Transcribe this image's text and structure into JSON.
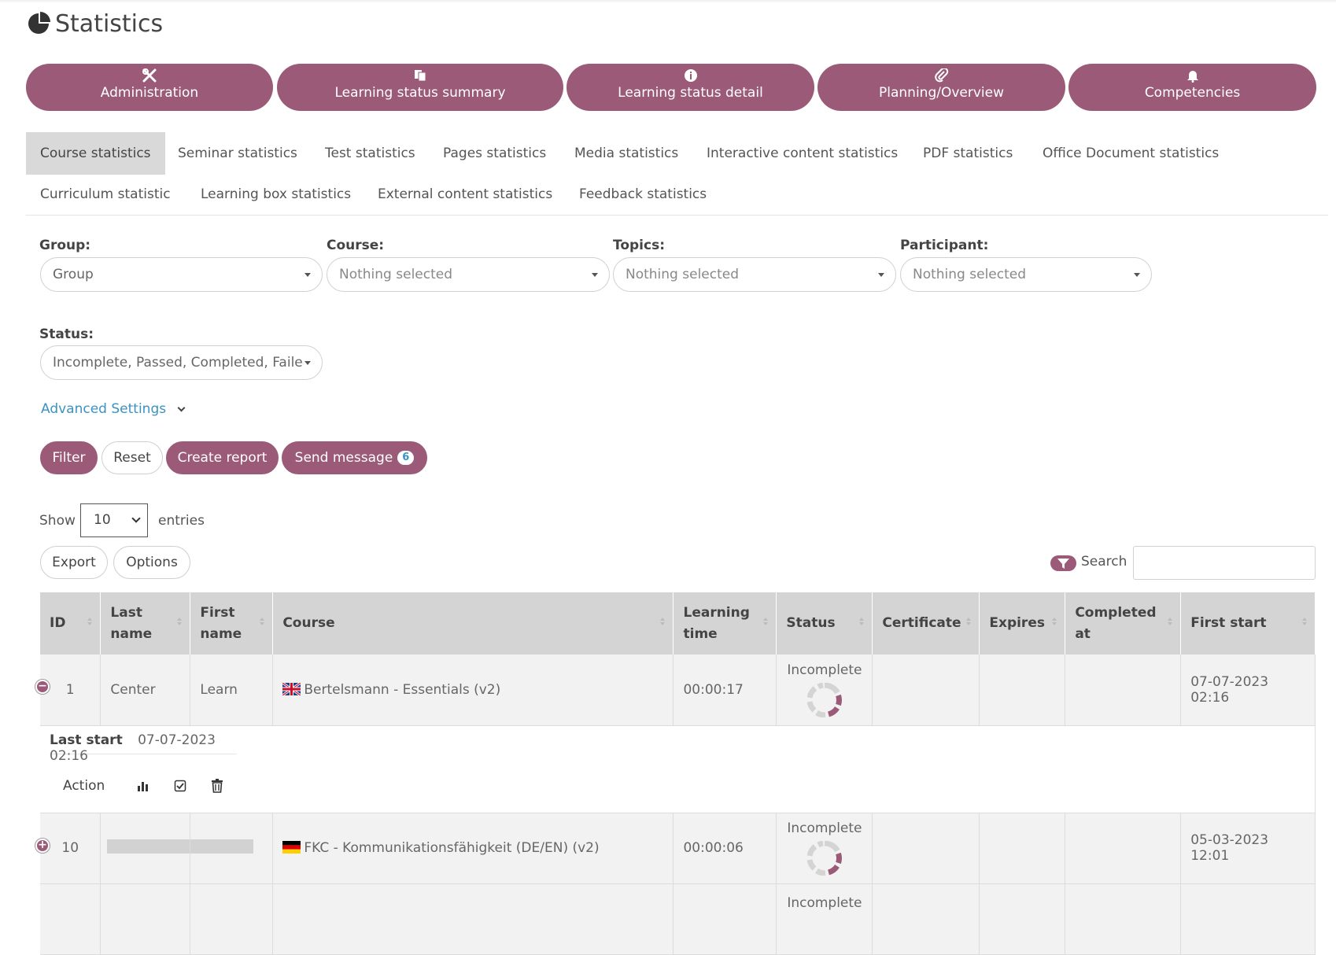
{
  "page": {
    "title": "Statistics"
  },
  "main_nav": [
    {
      "label": "Administration",
      "icon": "tools-icon"
    },
    {
      "label": "Learning status summary",
      "icon": "copy-icon"
    },
    {
      "label": "Learning status detail",
      "icon": "info-icon"
    },
    {
      "label": "Planning/Overview",
      "icon": "paperclip-icon"
    },
    {
      "label": "Competencies",
      "icon": "bell-icon"
    }
  ],
  "tabs": {
    "row1": [
      "Course statistics",
      "Seminar statistics",
      "Test statistics",
      "Pages statistics",
      "Media statistics",
      "Interactive content statistics",
      "PDF statistics",
      "Office Document statistics"
    ],
    "row2": [
      "Curriculum statistic",
      "Learning box statistics",
      "External content statistics",
      "Feedback statistics"
    ],
    "active": "Course statistics"
  },
  "filters": {
    "group": {
      "label": "Group:",
      "value": "Group"
    },
    "course": {
      "label": "Course:",
      "value": "Nothing selected"
    },
    "topics": {
      "label": "Topics:",
      "value": "Nothing selected"
    },
    "participant": {
      "label": "Participant:",
      "value": "Nothing selected"
    },
    "status": {
      "label": "Status:",
      "value": "Incomplete, Passed, Completed, Faile"
    },
    "advanced_label": "Advanced Settings"
  },
  "actions": {
    "filter": "Filter",
    "reset": "Reset",
    "create_report": "Create report",
    "send_message": "Send message",
    "send_message_count": "6"
  },
  "table_controls": {
    "show": "Show",
    "entries_value": "10",
    "entries": "entries",
    "export": "Export",
    "options": "Options",
    "search": "Search"
  },
  "table": {
    "columns": [
      {
        "label": "ID"
      },
      {
        "label": "Last name"
      },
      {
        "label": "First name"
      },
      {
        "label": "Course"
      },
      {
        "label": "Learning time"
      },
      {
        "label": "Status"
      },
      {
        "label": "Certificate"
      },
      {
        "label": "Expires"
      },
      {
        "label": "Completed at"
      },
      {
        "label": "First start"
      }
    ],
    "rows": [
      {
        "id": "1",
        "last_name": "Center",
        "first_name": "Learn",
        "course": "Bertelsmann - Essentials (v2)",
        "flag": "uk-flag-icon",
        "learning_time": "00:00:17",
        "status": "Incomplete",
        "certificate": "",
        "expires": "",
        "completed_at": "",
        "first_start": "07-07-2023 02:16",
        "expanded": true
      },
      {
        "id": "10",
        "last_name": "",
        "first_name": "",
        "course": "FKC - Kommunikationsfähigkeit (DE/EN) (v2)",
        "flag": "de-flag-icon",
        "learning_time": "00:00:06",
        "status": "Incomplete",
        "certificate": "",
        "expires": "",
        "completed_at": "",
        "first_start": "05-03-2023 12:01",
        "expanded": false
      },
      {
        "status": "Incomplete"
      }
    ],
    "detail": {
      "last_start_label": "Last start",
      "last_start_value": "07-07-2023 02:16",
      "action_label": "Action"
    }
  },
  "colors": {
    "accent": "#9b5a78",
    "link": "#3a93c3",
    "header_bg": "#d4d4d4"
  }
}
